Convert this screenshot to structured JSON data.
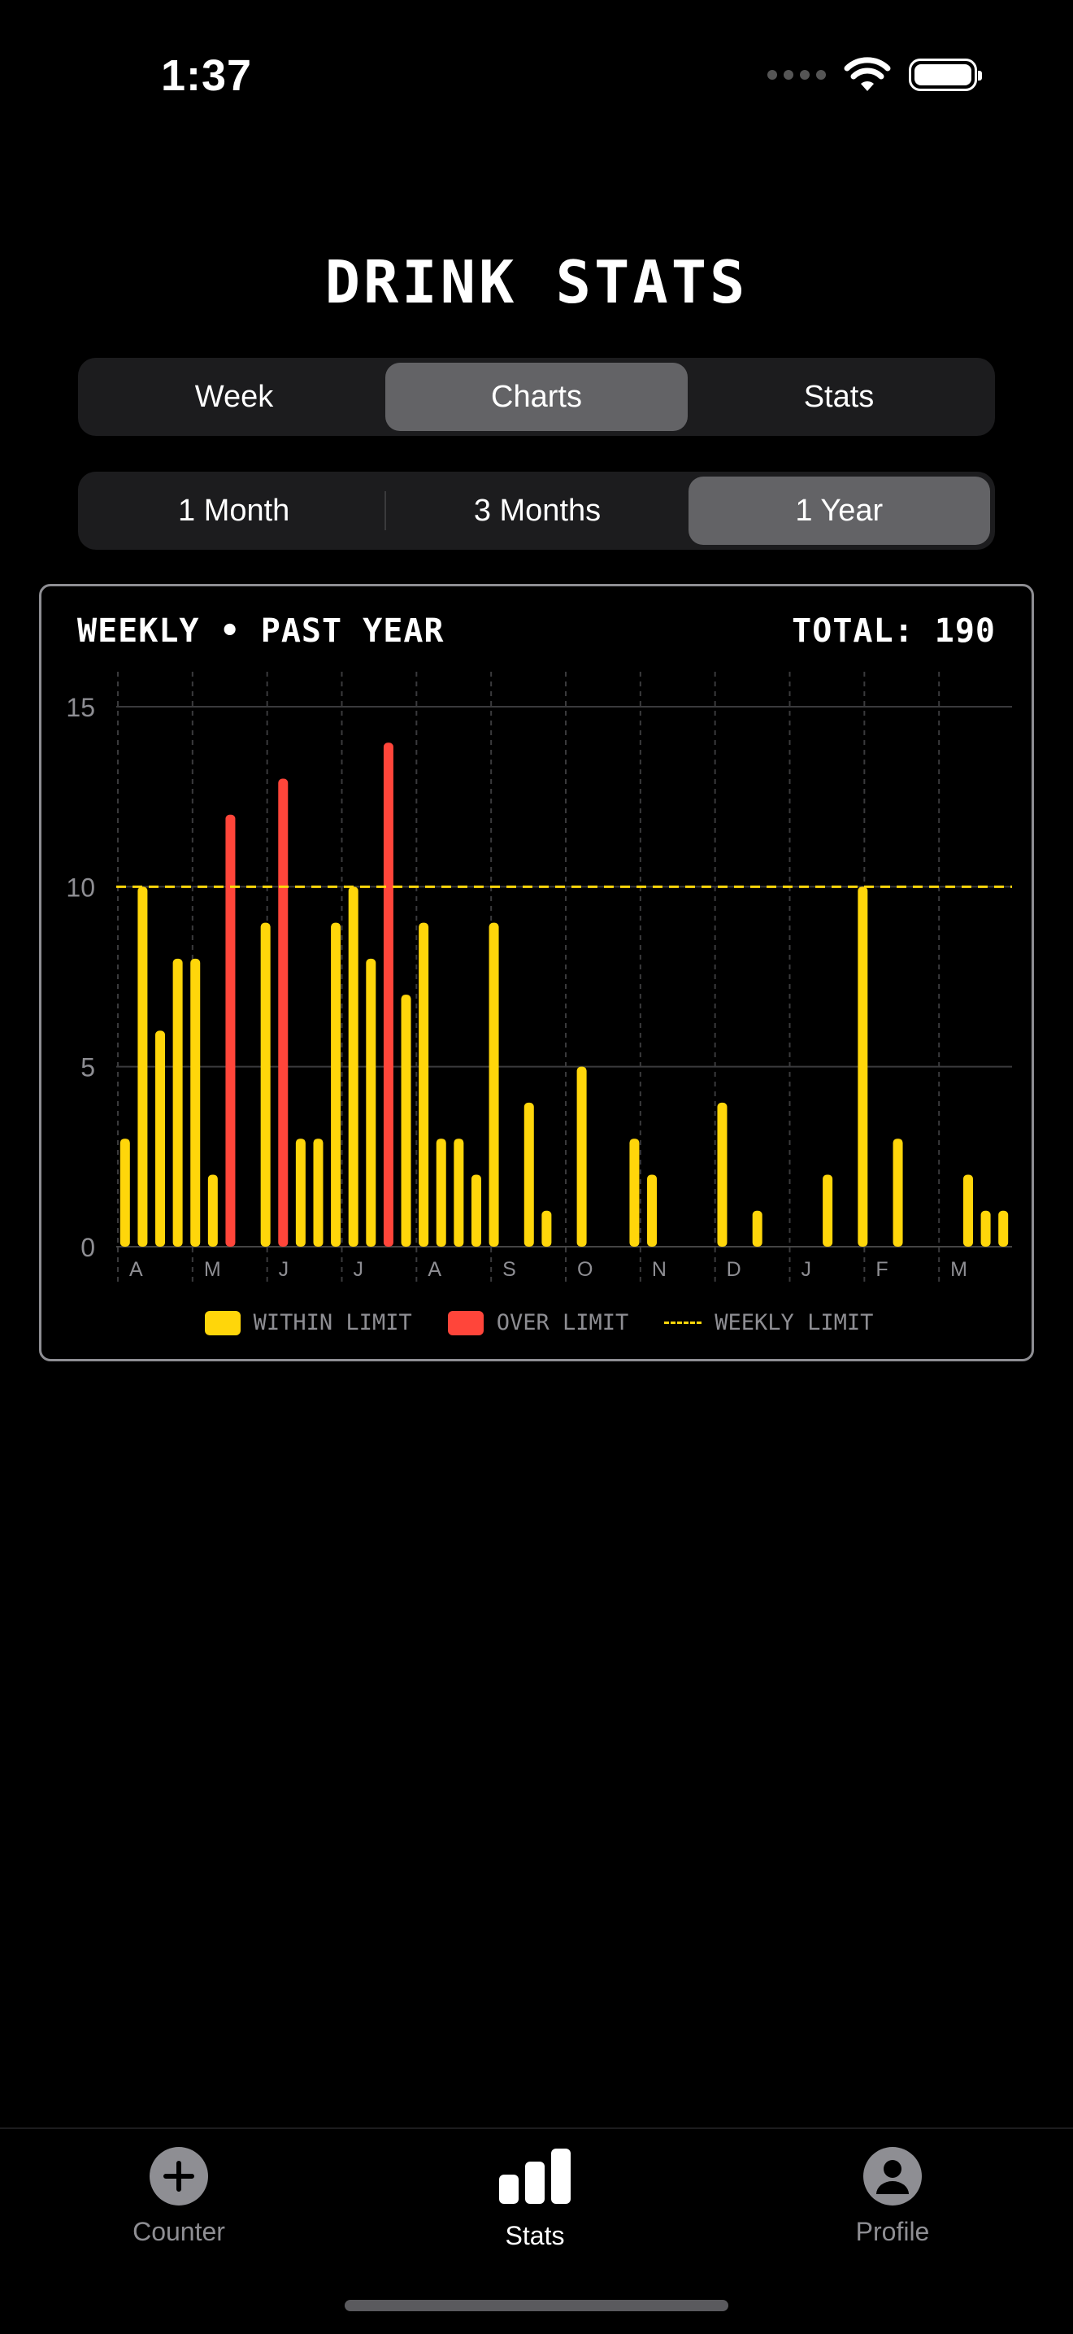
{
  "status": {
    "time": "1:37"
  },
  "title": "DRINK STATS",
  "view_tabs": [
    {
      "label": "Week",
      "active": false
    },
    {
      "label": "Charts",
      "active": true
    },
    {
      "label": "Stats",
      "active": false
    }
  ],
  "range_tabs": [
    {
      "label": "1 Month",
      "active": false
    },
    {
      "label": "3 Months",
      "active": false
    },
    {
      "label": "1 Year",
      "active": true
    }
  ],
  "card": {
    "title": "WEEKLY • PAST YEAR",
    "total": "TOTAL: 190"
  },
  "legend": {
    "within": "WITHIN LIMIT",
    "over": "OVER LIMIT",
    "limit": "WEEKLY LIMIT"
  },
  "colors": {
    "within": "#ffd60a",
    "over": "#ff453a",
    "limit": "#ffd60a",
    "accent_gray": "#636366"
  },
  "chart_data": {
    "type": "bar",
    "ylim": [
      0,
      15
    ],
    "yticks": [
      0,
      5,
      10,
      15
    ],
    "limit": 10,
    "month_labels": [
      "A",
      "M",
      "J",
      "J",
      "A",
      "S",
      "O",
      "N",
      "D",
      "J",
      "F",
      "M"
    ],
    "values": [
      3,
      10,
      6,
      8,
      8,
      2,
      12,
      0,
      9,
      13,
      3,
      3,
      9,
      10,
      8,
      14,
      7,
      9,
      3,
      3,
      2,
      9,
      0,
      4,
      1,
      0,
      5,
      0,
      0,
      3,
      2,
      0,
      0,
      0,
      4,
      0,
      1,
      0,
      0,
      0,
      2,
      0,
      10,
      0,
      3,
      0,
      0,
      0,
      2,
      1,
      1
    ],
    "series": [
      {
        "name": "WITHIN LIMIT"
      },
      {
        "name": "OVER LIMIT"
      }
    ]
  },
  "tabbar": [
    {
      "label": "Counter",
      "active": false
    },
    {
      "label": "Stats",
      "active": true
    },
    {
      "label": "Profile",
      "active": false
    }
  ]
}
